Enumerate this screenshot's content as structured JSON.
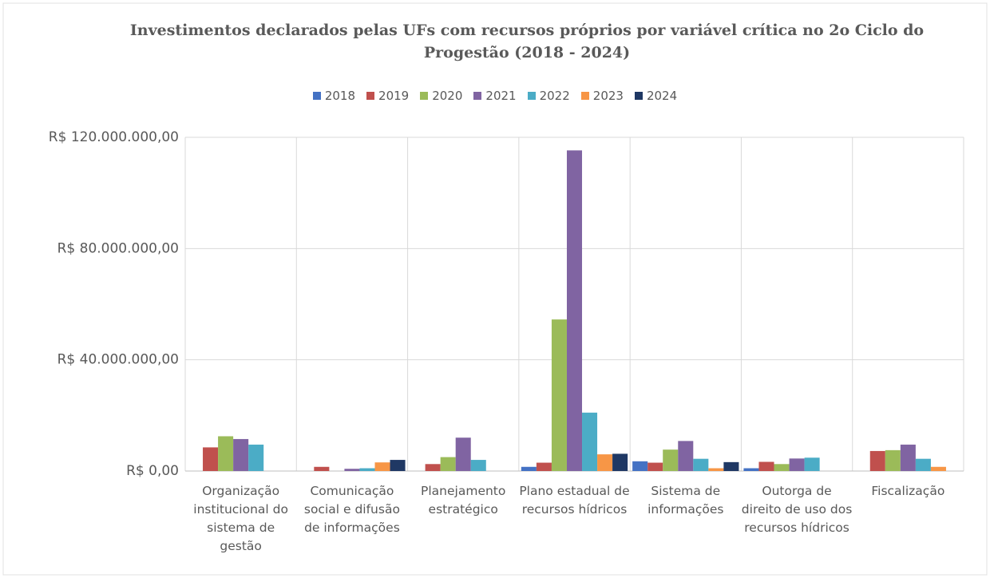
{
  "chart_data": {
    "type": "bar",
    "title": "Investimentos declarados pelas UFs com recursos próprios por variável crítica no 2o Ciclo do Progestão (2018 - 2024)",
    "categories": [
      "Organização institucional do sistema de gestão",
      "Comunicação social e difusão de informações",
      "Planejamento estratégico",
      "Plano estadual de recursos hídricos",
      "Sistema de informações",
      "Outorga de direito de uso dos recursos hídricos",
      "Fiscalização"
    ],
    "series": [
      {
        "name": "2018",
        "color": "#4472c4",
        "values": [
          0,
          0,
          0,
          1500000,
          3500000,
          1000000,
          0
        ]
      },
      {
        "name": "2019",
        "color": "#c0504d",
        "values": [
          8500000,
          1500000,
          2500000,
          3000000,
          3000000,
          3300000,
          7200000
        ]
      },
      {
        "name": "2020",
        "color": "#9bbb59",
        "values": [
          12500000,
          0,
          5000000,
          54500000,
          7700000,
          2500000,
          7500000
        ]
      },
      {
        "name": "2021",
        "color": "#8064a2",
        "values": [
          11500000,
          800000,
          12000000,
          115300000,
          10800000,
          4500000,
          9500000
        ]
      },
      {
        "name": "2022",
        "color": "#4bacc6",
        "values": [
          9500000,
          1000000,
          4000000,
          21000000,
          4400000,
          4800000,
          4400000
        ]
      },
      {
        "name": "2023",
        "color": "#f79646",
        "values": [
          0,
          3100000,
          0,
          6000000,
          1000000,
          0,
          1500000
        ]
      },
      {
        "name": "2024",
        "color": "#1f3864",
        "values": [
          0,
          4000000,
          0,
          6200000,
          3200000,
          0,
          0
        ]
      }
    ],
    "ylim": [
      0,
      120000000
    ],
    "yticks": [
      {
        "value": 0,
        "label": "R$ 0,00"
      },
      {
        "value": 40000000,
        "label": "R$ 40.000.000,00"
      },
      {
        "value": 80000000,
        "label": "R$ 80.000.000,00"
      },
      {
        "value": 120000000,
        "label": "R$ 120.000.000,00"
      }
    ],
    "grid": true,
    "legend": "top"
  }
}
